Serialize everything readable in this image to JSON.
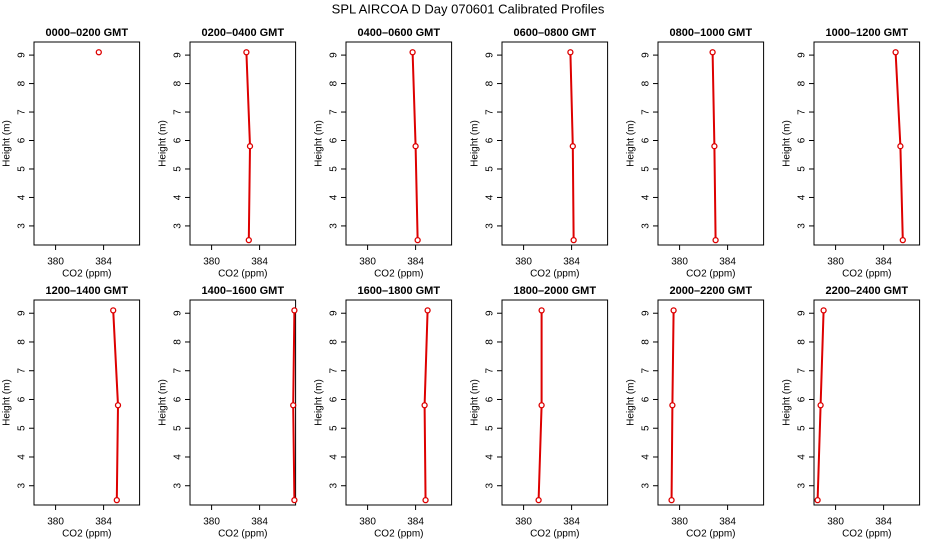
{
  "title": "SPL AIRCOA D  Day 070601  Calibrated Profiles",
  "chart_data": [
    {
      "type": "line",
      "title": "0000–0200 GMT",
      "x_label": "CO2 (ppm)",
      "y_label": "Height (m)",
      "xlim": [
        378.2,
        387.0
      ],
      "xticks": [
        380,
        384
      ],
      "ylim": [
        2.33,
        9.46
      ],
      "yticks": [
        3,
        4,
        5,
        6,
        7,
        8,
        9
      ],
      "series": [
        {
          "color": "#dd0000",
          "x": [
            383.6
          ],
          "values": [
            9.1
          ]
        }
      ]
    },
    {
      "type": "line",
      "title": "0200–0400 GMT",
      "x_label": "CO2 (ppm)",
      "y_label": "Height (m)",
      "xlim": [
        378.2,
        387.0
      ],
      "xticks": [
        380,
        384
      ],
      "ylim": [
        2.33,
        9.46
      ],
      "yticks": [
        3,
        4,
        5,
        6,
        7,
        8,
        9
      ],
      "series": [
        {
          "color": "#dd0000",
          "x": [
            383.1,
            383.2,
            382.9
          ],
          "values": [
            2.5,
            5.8,
            9.1
          ]
        }
      ]
    },
    {
      "type": "line",
      "title": "0400–0600 GMT",
      "x_label": "CO2 (ppm)",
      "y_label": "Height (m)",
      "xlim": [
        378.2,
        387.0
      ],
      "xticks": [
        380,
        384
      ],
      "ylim": [
        2.33,
        9.46
      ],
      "yticks": [
        3,
        4,
        5,
        6,
        7,
        8,
        9
      ],
      "series": [
        {
          "color": "#dd0000",
          "x": [
            384.17,
            384.0,
            383.75
          ],
          "values": [
            2.5,
            5.8,
            9.1
          ]
        }
      ]
    },
    {
      "type": "line",
      "title": "0600–0800 GMT",
      "x_label": "CO2 (ppm)",
      "y_label": "Height (m)",
      "xlim": [
        378.2,
        387.0
      ],
      "xticks": [
        380,
        384
      ],
      "ylim": [
        2.33,
        9.46
      ],
      "yticks": [
        3,
        4,
        5,
        6,
        7,
        8,
        9
      ],
      "series": [
        {
          "color": "#dd0000",
          "x": [
            384.17,
            384.1,
            383.9
          ],
          "values": [
            2.5,
            5.8,
            9.1
          ]
        }
      ]
    },
    {
      "type": "line",
      "title": "0800–1000 GMT",
      "x_label": "CO2 (ppm)",
      "y_label": "Height (m)",
      "xlim": [
        378.2,
        387.0
      ],
      "xticks": [
        380,
        384
      ],
      "ylim": [
        2.33,
        9.46
      ],
      "yticks": [
        3,
        4,
        5,
        6,
        7,
        8,
        9
      ],
      "series": [
        {
          "color": "#dd0000",
          "x": [
            383.0,
            382.9,
            382.75
          ],
          "values": [
            2.5,
            5.8,
            9.1
          ]
        }
      ]
    },
    {
      "type": "line",
      "title": "1000–1200 GMT",
      "x_label": "CO2 (ppm)",
      "y_label": "Height (m)",
      "xlim": [
        378.2,
        387.0
      ],
      "xticks": [
        380,
        384
      ],
      "ylim": [
        2.33,
        9.46
      ],
      "yticks": [
        3,
        4,
        5,
        6,
        7,
        8,
        9
      ],
      "series": [
        {
          "color": "#dd0000",
          "x": [
            385.6,
            385.4,
            385.0
          ],
          "values": [
            2.5,
            5.8,
            9.1
          ]
        }
      ]
    },
    {
      "type": "line",
      "title": "1200–1400 GMT",
      "x_label": "CO2 (ppm)",
      "y_label": "Height (m)",
      "xlim": [
        378.2,
        387.0
      ],
      "xticks": [
        380,
        384
      ],
      "ylim": [
        2.33,
        9.46
      ],
      "yticks": [
        3,
        4,
        5,
        6,
        7,
        8,
        9
      ],
      "series": [
        {
          "color": "#dd0000",
          "x": [
            385.1,
            385.2,
            384.8
          ],
          "values": [
            2.5,
            5.8,
            9.1
          ]
        }
      ]
    },
    {
      "type": "line",
      "title": "1400–1600 GMT",
      "x_label": "CO2 (ppm)",
      "y_label": "Height (m)",
      "xlim": [
        378.2,
        387.0
      ],
      "xticks": [
        380,
        384
      ],
      "ylim": [
        2.33,
        9.46
      ],
      "yticks": [
        3,
        4,
        5,
        6,
        7,
        8,
        9
      ],
      "series": [
        {
          "color": "#dd0000",
          "x": [
            386.9,
            386.8,
            386.9
          ],
          "values": [
            2.5,
            5.8,
            9.1
          ]
        }
      ]
    },
    {
      "type": "line",
      "title": "1600–1800 GMT",
      "x_label": "CO2 (ppm)",
      "y_label": "Height (m)",
      "xlim": [
        378.2,
        387.0
      ],
      "xticks": [
        380,
        384
      ],
      "ylim": [
        2.33,
        9.46
      ],
      "yticks": [
        3,
        4,
        5,
        6,
        7,
        8,
        9
      ],
      "series": [
        {
          "color": "#dd0000",
          "x": [
            384.83,
            384.75,
            385.0
          ],
          "values": [
            2.5,
            5.8,
            9.1
          ]
        }
      ]
    },
    {
      "type": "line",
      "title": "1800–2000 GMT",
      "x_label": "CO2 (ppm)",
      "y_label": "Height (m)",
      "xlim": [
        378.2,
        387.0
      ],
      "xticks": [
        380,
        384
      ],
      "ylim": [
        2.33,
        9.46
      ],
      "yticks": [
        3,
        4,
        5,
        6,
        7,
        8,
        9
      ],
      "series": [
        {
          "color": "#dd0000",
          "x": [
            381.25,
            381.5,
            381.5
          ],
          "values": [
            2.5,
            5.8,
            9.1
          ]
        }
      ]
    },
    {
      "type": "line",
      "title": "2000–2200 GMT",
      "x_label": "CO2 (ppm)",
      "y_label": "Height (m)",
      "xlim": [
        378.2,
        387.0
      ],
      "xticks": [
        380,
        384
      ],
      "ylim": [
        2.33,
        9.46
      ],
      "yticks": [
        3,
        4,
        5,
        6,
        7,
        8,
        9
      ],
      "series": [
        {
          "color": "#dd0000",
          "x": [
            379.33,
            379.4,
            379.5
          ],
          "values": [
            2.5,
            5.8,
            9.1
          ]
        }
      ]
    },
    {
      "type": "line",
      "title": "2200–2400 GMT",
      "x_label": "CO2 (ppm)",
      "y_label": "Height (m)",
      "xlim": [
        378.2,
        387.0
      ],
      "xticks": [
        380,
        384
      ],
      "ylim": [
        2.33,
        9.46
      ],
      "yticks": [
        3,
        4,
        5,
        6,
        7,
        8,
        9
      ],
      "series": [
        {
          "color": "#dd0000",
          "x": [
            378.5,
            378.75,
            379.0
          ],
          "values": [
            2.5,
            5.8,
            9.1
          ]
        }
      ]
    }
  ]
}
